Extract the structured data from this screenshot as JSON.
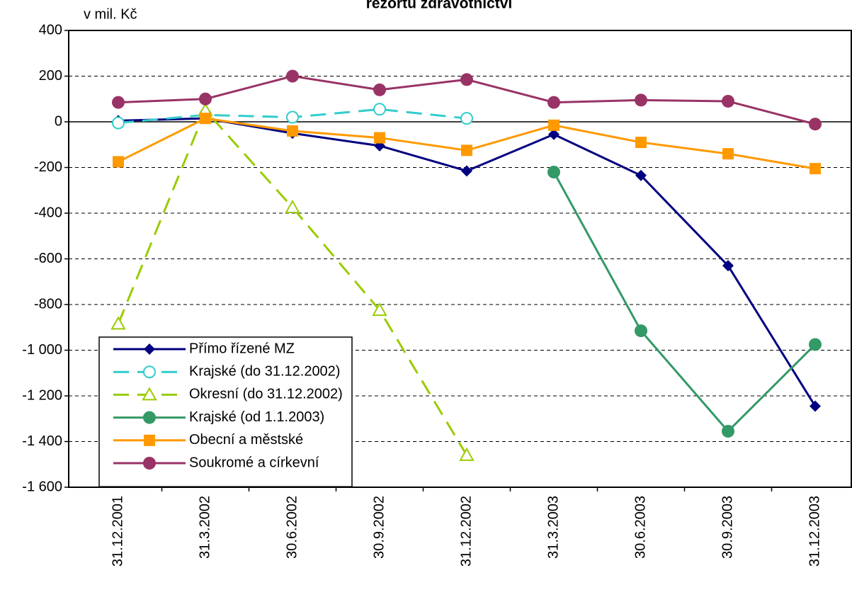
{
  "chart_data": {
    "type": "line",
    "title": "rezortu zdravotnictví",
    "y_label": "v mil. Kč",
    "categories": [
      "31.12.2001",
      "31.3.2002",
      "30.6.2002",
      "30.9.2002",
      "31.12.2002",
      "31.3.2003",
      "30.6.2003",
      "30.9.2003",
      "31.12.2003"
    ],
    "series": [
      {
        "name": "Přímo řízené MZ",
        "color": "#000080",
        "marker": "diamond",
        "dashed": false,
        "values": [
          5,
          15,
          -50,
          -105,
          -215,
          -55,
          -235,
          -630,
          -1245
        ]
      },
      {
        "name": "Krajské (do 31.12.2002)",
        "color": "#33CCCC",
        "marker": "open-circle",
        "dashed": true,
        "values": [
          -5,
          30,
          20,
          55,
          15,
          null,
          null,
          null,
          null
        ]
      },
      {
        "name": "Okresní (do 31.12.2002)",
        "color": "#99CC00",
        "marker": "open-triangle",
        "dashed": true,
        "values": [
          -885,
          50,
          -375,
          -825,
          -1460,
          null,
          null,
          null,
          null
        ]
      },
      {
        "name": "Krajské (od 1.1.2003)",
        "color": "#339966",
        "marker": "circle",
        "dashed": false,
        "values": [
          null,
          null,
          null,
          null,
          null,
          -220,
          -915,
          -1355,
          -975
        ]
      },
      {
        "name": "Obecní a městské",
        "color": "#FF9900",
        "marker": "square",
        "dashed": false,
        "values": [
          -175,
          15,
          -40,
          -70,
          -125,
          -15,
          -90,
          -140,
          -205
        ]
      },
      {
        "name": "Soukromé a církevní",
        "color": "#993366",
        "marker": "circle",
        "dashed": false,
        "values": [
          85,
          100,
          200,
          140,
          185,
          85,
          95,
          90,
          -10
        ]
      }
    ],
    "ylim": [
      -1600,
      400
    ],
    "yticks": [
      400,
      200,
      0,
      -200,
      -400,
      -600,
      -800,
      {
        "value": -1000,
        "label": "-1 000"
      },
      {
        "value": -1200,
        "label": "-1 200"
      },
      {
        "value": -1400,
        "label": "-1 400"
      },
      {
        "value": -1600,
        "label": "-1 600"
      }
    ],
    "grid": true,
    "legend": "lower left"
  }
}
